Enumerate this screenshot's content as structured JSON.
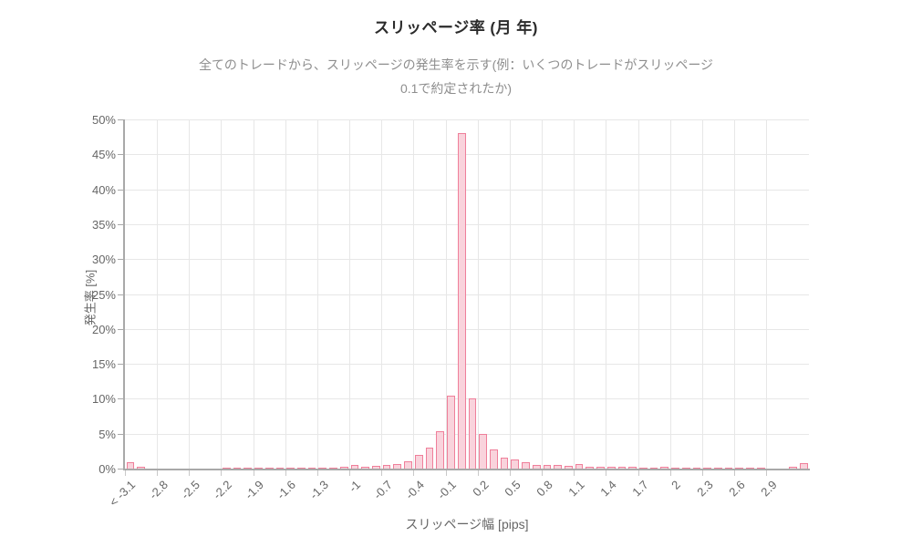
{
  "header": {
    "title": "スリッページ率 (月 年)",
    "subtitle_line1": "全てのトレードから、スリッページの発生率を示す(例：いくつのトレードがスリッページ",
    "subtitle_line2": "0.1で約定されたか)"
  },
  "chart_data": {
    "type": "bar",
    "subtype": "histogram",
    "title": "スリッページ率 (月 年)",
    "xlabel": "スリッページ幅 [pips]",
    "ylabel": "発生率 [%]",
    "ylim": [
      0,
      50
    ],
    "y_tick_step": 5,
    "y_tick_suffix": "%",
    "grid": true,
    "legend": false,
    "bin_width_pips": 0.1,
    "x_tick_every_bins": 3,
    "x_tick_labels": [
      "< -3.1",
      "-2.8",
      "-2.5",
      "-2.2",
      "-1.9",
      "-1.6",
      "-1.3",
      "-1",
      "-0.7",
      "-0.4",
      "-0.1",
      "0.2",
      "0.5",
      "0.8",
      "1.1",
      "1.4",
      "1.7",
      "2",
      "2.3",
      "2.6",
      "2.9"
    ],
    "values_percent": [
      0.9,
      0.3,
      0,
      0,
      0,
      0,
      0,
      0,
      0,
      0.1,
      0.1,
      0.15,
      0.15,
      0.1,
      0.1,
      0.15,
      0.1,
      0.15,
      0.15,
      0.15,
      0.2,
      0.5,
      0.3,
      0.45,
      0.55,
      0.6,
      1.1,
      1.9,
      3.0,
      5.3,
      10.4,
      48,
      10.0,
      4.9,
      2.7,
      1.6,
      1.3,
      0.9,
      0.55,
      0.55,
      0.5,
      0.4,
      0.6,
      0.3,
      0.25,
      0.2,
      0.2,
      0.2,
      0.15,
      0.15,
      0.25,
      0.15,
      0.1,
      0.1,
      0.1,
      0.1,
      0.1,
      0.1,
      0.1,
      0.1,
      0,
      0,
      0.3,
      0.8
    ],
    "peak": {
      "bin_start_pips": 0.0,
      "value_percent": 48
    },
    "colors": {
      "bar_fill": "#f9d3dc",
      "bar_border": "#ef7f9a",
      "grid": "#e7e7e7",
      "axis": "#a9a9a9",
      "tick_label": "#666666",
      "title": "#2b2b2b",
      "subtitle": "#8e8e8e"
    }
  }
}
